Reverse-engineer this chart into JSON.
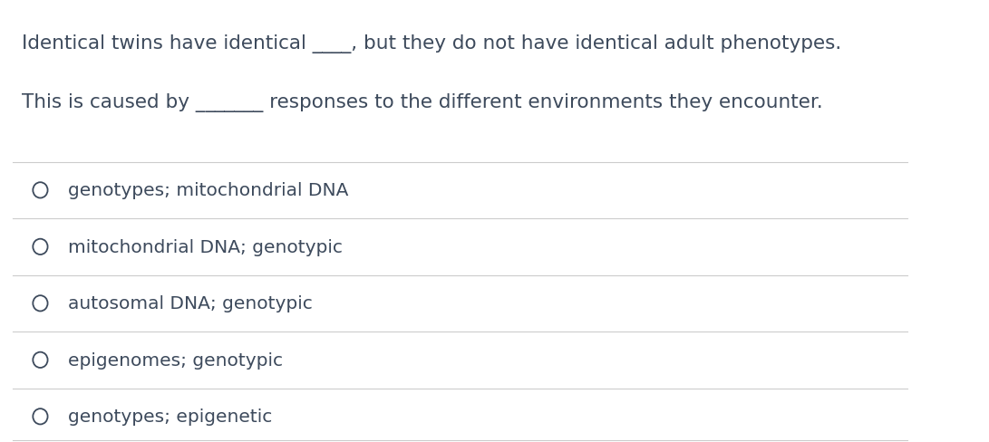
{
  "background_color": "#ffffff",
  "text_color": "#3d4a5c",
  "question_line1": "Identical twins have identical ____, but they do not have identical adult phenotypes.",
  "question_line2": "This is caused by _______ responses to the different environments they encounter.",
  "options": [
    "genotypes; mitochondrial DNA",
    "mitochondrial DNA; genotypic",
    "autosomal DNA; genotypic",
    "epigenomes; genotypic",
    "genotypes; epigenetic"
  ],
  "circle_color": "#3d4a5c",
  "line_color": "#cccccc",
  "font_size_question": 15.5,
  "font_size_options": 14.5,
  "fig_width": 10.91,
  "fig_height": 4.89,
  "dpi": 100
}
